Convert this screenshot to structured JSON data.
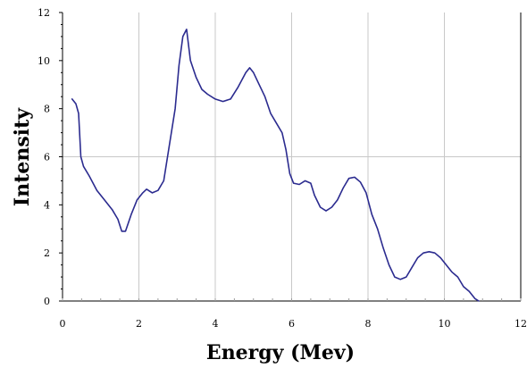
{
  "chart_data": {
    "type": "line",
    "title": "",
    "xlabel": "Energy (Mev)",
    "ylabel": "Intensity",
    "xlim": [
      0,
      12
    ],
    "ylim": [
      0,
      12
    ],
    "xticks": [
      0,
      2,
      4,
      6,
      8,
      10,
      12
    ],
    "yticks": [
      0,
      2,
      4,
      6,
      8,
      10,
      12
    ],
    "xtick_labels": [
      "0",
      "2",
      "4",
      "6",
      "8",
      "10",
      "12"
    ],
    "ytick_labels": [
      "0",
      "2",
      "4",
      "6",
      "8",
      "10",
      "12"
    ],
    "grid": "vertical lines at even x, horizontal line at y=6",
    "series_color": "#2b2b8f",
    "series": [
      {
        "x": [
          0.25,
          0.35,
          0.42,
          0.48,
          0.55,
          0.7,
          0.9,
          1.1,
          1.3,
          1.45,
          1.55,
          1.65,
          1.8,
          1.95,
          2.1,
          2.2,
          2.35,
          2.5,
          2.65,
          2.8,
          2.95,
          3.05,
          3.15,
          3.25,
          3.35,
          3.5,
          3.65,
          3.8,
          4.0,
          4.2,
          4.4,
          4.6,
          4.8,
          4.9,
          5.0,
          5.15,
          5.3,
          5.45,
          5.6,
          5.75,
          5.85,
          5.95,
          6.05,
          6.2,
          6.35,
          6.5,
          6.6,
          6.75,
          6.9,
          7.05,
          7.2,
          7.35,
          7.5,
          7.65,
          7.8,
          7.95,
          8.1,
          8.25,
          8.4,
          8.55,
          8.7,
          8.85,
          9.0,
          9.15,
          9.3,
          9.45,
          9.6,
          9.75,
          9.9,
          10.05,
          10.2,
          10.35,
          10.5,
          10.65,
          10.8,
          10.9
        ],
        "y": [
          8.4,
          8.2,
          7.8,
          6.0,
          5.6,
          5.2,
          4.6,
          4.2,
          3.8,
          3.4,
          2.9,
          2.9,
          3.6,
          4.2,
          4.5,
          4.65,
          4.5,
          4.6,
          5.0,
          6.5,
          8.0,
          9.8,
          11.0,
          11.3,
          10.0,
          9.3,
          8.8,
          8.6,
          8.4,
          8.3,
          8.4,
          8.9,
          9.5,
          9.7,
          9.5,
          9.0,
          8.5,
          7.8,
          7.4,
          7.0,
          6.3,
          5.3,
          4.9,
          4.85,
          5.0,
          4.9,
          4.4,
          3.9,
          3.75,
          3.9,
          4.2,
          4.7,
          5.1,
          5.15,
          4.95,
          4.5,
          3.6,
          3.0,
          2.2,
          1.5,
          1.0,
          0.9,
          1.0,
          1.4,
          1.8,
          2.0,
          2.05,
          2.0,
          1.8,
          1.5,
          1.2,
          1.0,
          0.6,
          0.4,
          0.1,
          0.0
        ]
      }
    ]
  }
}
